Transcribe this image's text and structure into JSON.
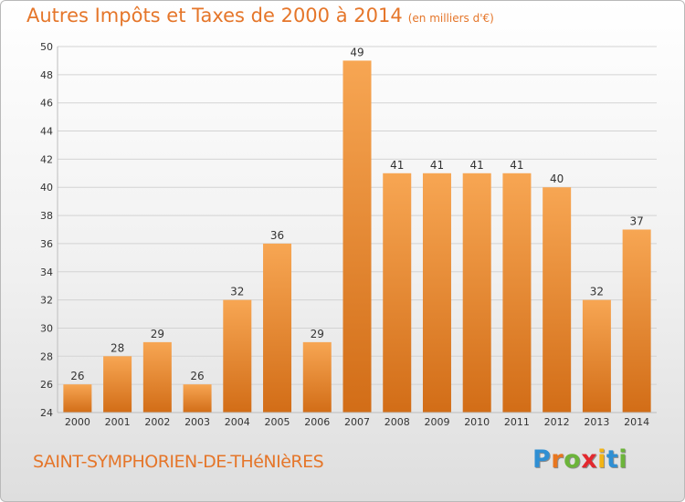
{
  "title": "Autres Impôts et Taxes de 2000 à 2014",
  "subtitle": "(en milliers d'€)",
  "commune": "SAINT-SYMPHORIEN-DE-THéNIèRES",
  "logo": {
    "letters": [
      "P",
      "r",
      "o",
      "x",
      "i",
      "t",
      "i"
    ],
    "colors": [
      "#2f8fd3",
      "#e8761f",
      "#6cb43a",
      "#e3282e",
      "#f2b416",
      "#2f8fd3",
      "#6cb43a"
    ]
  },
  "colors": {
    "bar_light": "#f7a653",
    "bar_dark": "#d26d17",
    "accent": "#e5762a"
  },
  "chart_data": {
    "type": "bar",
    "categories": [
      "2000",
      "2001",
      "2002",
      "2003",
      "2004",
      "2005",
      "2006",
      "2007",
      "2008",
      "2009",
      "2010",
      "2011",
      "2012",
      "2013",
      "2014"
    ],
    "values": [
      26,
      28,
      29,
      26,
      32,
      36,
      29,
      49,
      41,
      41,
      41,
      41,
      40,
      32,
      37
    ],
    "ylim": [
      24,
      50
    ],
    "yticks": [
      24,
      26,
      28,
      30,
      32,
      34,
      36,
      38,
      40,
      42,
      44,
      46,
      48,
      50
    ],
    "grid": true,
    "legend": "none"
  }
}
